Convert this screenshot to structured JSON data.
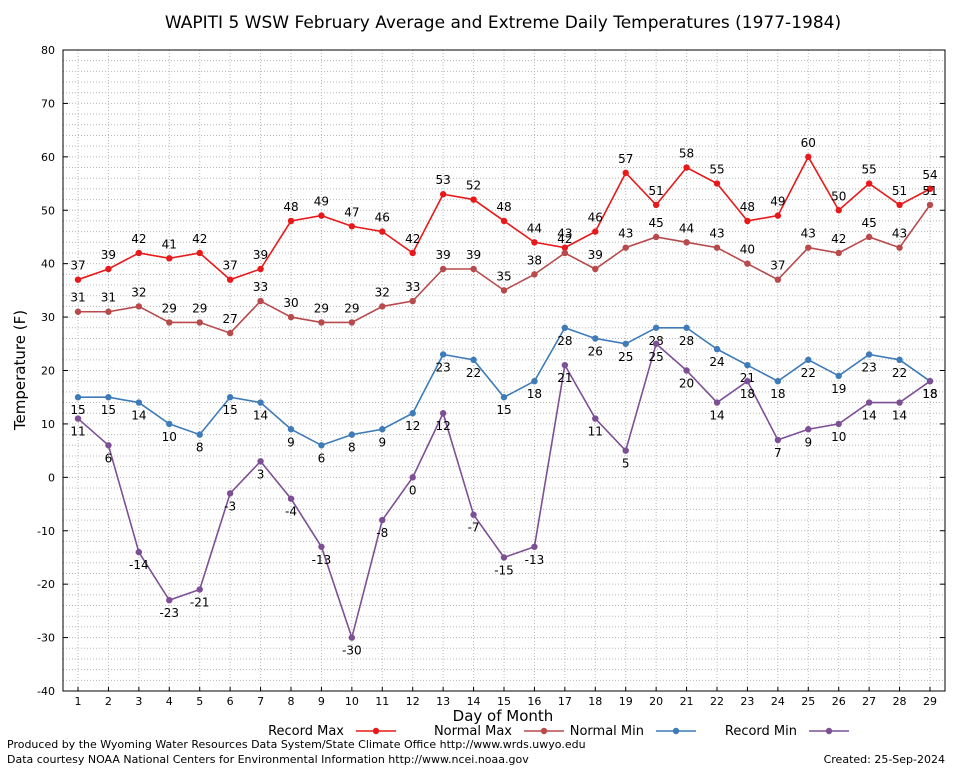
{
  "chart_data": {
    "type": "line",
    "title": "WAPITI 5 WSW February Average and Extreme Daily Temperatures (1977-1984)",
    "xlabel": "Day of Month",
    "ylabel": "Temperature (F)",
    "ylim": [
      -40,
      80
    ],
    "yticks": [
      -40,
      -30,
      -20,
      -10,
      0,
      10,
      20,
      30,
      40,
      50,
      60,
      70,
      80
    ],
    "x": [
      1,
      2,
      3,
      4,
      5,
      6,
      7,
      8,
      9,
      10,
      11,
      12,
      13,
      14,
      15,
      16,
      17,
      18,
      19,
      20,
      21,
      22,
      23,
      24,
      25,
      26,
      27,
      28,
      29
    ],
    "grid": true,
    "legend_position": "bottom",
    "series": [
      {
        "name": "Record Max",
        "color": "#e8191a",
        "values": [
          37,
          39,
          42,
          41,
          42,
          37,
          39,
          48,
          49,
          47,
          46,
          42,
          53,
          52,
          48,
          44,
          43,
          46,
          57,
          51,
          58,
          55,
          48,
          49,
          60,
          50,
          55,
          51,
          54
        ]
      },
      {
        "name": "Normal Max",
        "color": "#b84a4c",
        "values": [
          31,
          31,
          32,
          29,
          29,
          27,
          33,
          30,
          29,
          29,
          32,
          33,
          39,
          39,
          35,
          38,
          42,
          39,
          43,
          45,
          44,
          43,
          40,
          37,
          43,
          42,
          45,
          43,
          51
        ]
      },
      {
        "name": "Normal Min",
        "color": "#3e7bb8",
        "values": [
          15,
          15,
          14,
          10,
          8,
          15,
          14,
          9,
          6,
          8,
          9,
          12,
          23,
          22,
          15,
          18,
          28,
          26,
          25,
          28,
          28,
          24,
          21,
          18,
          22,
          19,
          23,
          22,
          18
        ]
      },
      {
        "name": "Record Min",
        "color": "#7d5096",
        "values": [
          11,
          6,
          -14,
          -23,
          -21,
          -3,
          3,
          -4,
          -13,
          -30,
          -8,
          0,
          12,
          -7,
          -15,
          -13,
          21,
          11,
          5,
          25,
          20,
          14,
          18,
          7,
          9,
          10,
          14,
          14,
          18
        ]
      }
    ]
  },
  "footer": {
    "producer": "Produced by the Wyoming Water Resources Data System/State Climate Office http://www.wrds.uwyo.edu",
    "courtesy": "Data courtesy NOAA National Centers for Environmental Information http://www.ncei.noaa.gov",
    "created": "Created:  25-Sep-2024"
  }
}
